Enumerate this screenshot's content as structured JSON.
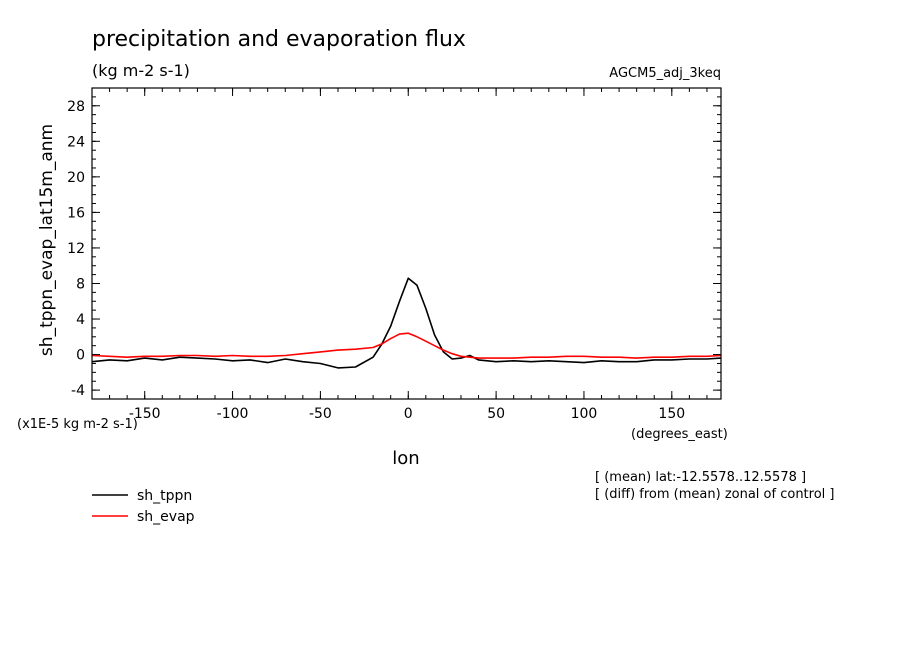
{
  "chart_data": {
    "type": "line",
    "title": "precipitation and evaporation flux",
    "subtitle": "(kg m-2 s-1)",
    "dataset": "AGCM5_adj_3keq",
    "ylabel": "sh_tppn_evap_lat15m_anm",
    "xlabel": "lon",
    "xunits": "(degrees_east)",
    "yscale_note": "(x1E-5 kg m-2 s-1)",
    "xlim": [
      -180,
      178
    ],
    "ylim": [
      -5,
      30
    ],
    "xticks": [
      -150,
      -100,
      -50,
      0,
      50,
      100,
      150
    ],
    "yticks": [
      -4,
      0,
      4,
      8,
      12,
      16,
      20,
      24,
      28
    ],
    "xtick_labels": [
      "-150",
      "-100",
      "-50",
      "0",
      "50",
      "100",
      "150"
    ],
    "ytick_labels": [
      "-4",
      "0",
      "4",
      "8",
      "12",
      "16",
      "20",
      "24",
      "28"
    ],
    "annotations": [
      "[ (mean) lat:-12.5578..12.5578 ]",
      "[ (diff) from (mean) zonal of control ]"
    ],
    "x": [
      -180,
      -170,
      -160,
      -150,
      -140,
      -130,
      -120,
      -110,
      -100,
      -90,
      -80,
      -70,
      -60,
      -50,
      -40,
      -30,
      -20,
      -15,
      -10,
      -5,
      0,
      5,
      10,
      15,
      20,
      25,
      30,
      35,
      40,
      50,
      60,
      70,
      80,
      90,
      100,
      110,
      120,
      130,
      140,
      150,
      160,
      170,
      178
    ],
    "series": [
      {
        "name": "sh_tppn",
        "color": "#000000",
        "values": [
          -0.8,
          -0.6,
          -0.7,
          -0.4,
          -0.6,
          -0.3,
          -0.4,
          -0.5,
          -0.7,
          -0.6,
          -0.9,
          -0.5,
          -0.8,
          -1.0,
          -1.5,
          -1.4,
          -0.3,
          1.2,
          3.2,
          6.0,
          8.6,
          7.8,
          5.2,
          2.2,
          0.3,
          -0.5,
          -0.4,
          -0.1,
          -0.6,
          -0.8,
          -0.7,
          -0.8,
          -0.7,
          -0.8,
          -0.9,
          -0.7,
          -0.8,
          -0.8,
          -0.6,
          -0.6,
          -0.5,
          -0.5,
          -0.4
        ]
      },
      {
        "name": "sh_evap",
        "color": "#ff0000",
        "values": [
          -0.1,
          -0.2,
          -0.3,
          -0.2,
          -0.2,
          -0.1,
          -0.1,
          -0.2,
          -0.1,
          -0.2,
          -0.2,
          -0.1,
          0.1,
          0.3,
          0.5,
          0.6,
          0.8,
          1.2,
          1.8,
          2.3,
          2.4,
          2.0,
          1.5,
          1.0,
          0.5,
          0.1,
          -0.2,
          -0.3,
          -0.4,
          -0.4,
          -0.4,
          -0.3,
          -0.3,
          -0.2,
          -0.2,
          -0.3,
          -0.3,
          -0.4,
          -0.3,
          -0.3,
          -0.2,
          -0.2,
          -0.1
        ]
      }
    ]
  }
}
